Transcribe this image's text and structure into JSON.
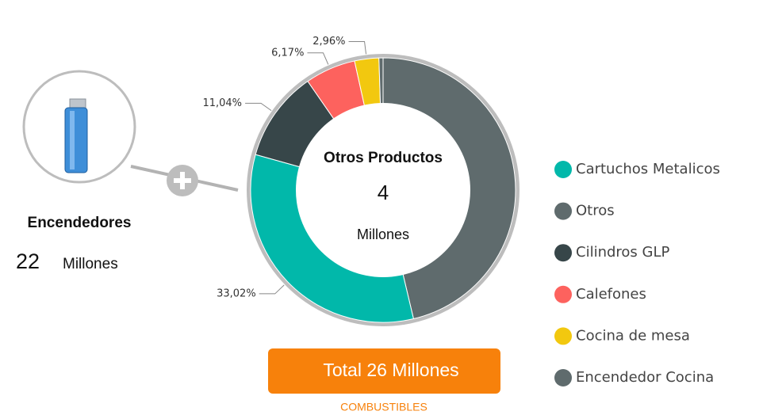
{
  "chart_data": {
    "type": "donut",
    "series": [
      {
        "name": "Otros",
        "color": "#5f6b6d",
        "value": 46.31,
        "value_label": null
      },
      {
        "name": "Cartuchos Metalicos",
        "color": "#01b8aa",
        "value": 33.02,
        "value_label": "33,02%"
      },
      {
        "name": "Cilindros GLP",
        "color": "#374649",
        "value": 11.04,
        "value_label": "11,04%"
      },
      {
        "name": "Calefones",
        "color": "#fd625e",
        "value": 6.17,
        "value_label": "6,17%"
      },
      {
        "name": "Cocina de mesa",
        "color": "#f2c80f",
        "value": 2.96,
        "value_label": "2,96%"
      },
      {
        "name": "Encendedor Cocina",
        "color": "#5f6b6d",
        "value": 0.5,
        "value_label": null
      }
    ],
    "legend_order": [
      1,
      0,
      2,
      3,
      4,
      5
    ],
    "center": {
      "title": "Otros Productos",
      "value": "4",
      "unit": "Millones"
    }
  },
  "side_card": {
    "title": "Encendedores",
    "value": "22",
    "unit": "Millones"
  },
  "total_button": {
    "label": "Total 26 Millones"
  },
  "footer": {
    "label": "COMBUSTIBLES"
  }
}
